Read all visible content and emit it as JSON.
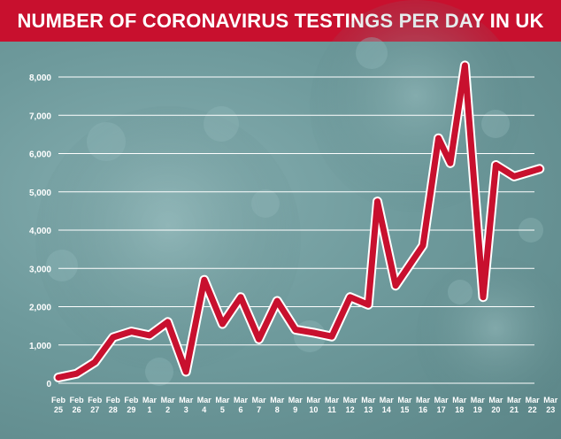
{
  "title": "NUMBER OF CORONAVIRUS TESTINGS PER DAY IN UK",
  "colors": {
    "title_bg": "#c8102e",
    "line": "#c8102e",
    "line_outline": "#ffffff",
    "grid": "#ffffff",
    "text": "#ffffff"
  },
  "chart_data": {
    "type": "line",
    "title": "NUMBER OF CORONAVIRUS TESTINGS PER DAY IN UK",
    "xlabel": "",
    "ylabel": "",
    "ylim": [
      0,
      8000
    ],
    "yticks": [
      0,
      1000,
      2000,
      3000,
      4000,
      5000,
      6000,
      7000,
      8000
    ],
    "ytick_labels": [
      "0",
      "1,000",
      "2,000",
      "3,000",
      "4,000",
      "5,000",
      "6,000",
      "7,000",
      "8,000"
    ],
    "grid": true,
    "legend": "none",
    "categories": [
      {
        "month": "Feb",
        "day": "25"
      },
      {
        "month": "Feb",
        "day": "26"
      },
      {
        "month": "Feb",
        "day": "27"
      },
      {
        "month": "Feb",
        "day": "28"
      },
      {
        "month": "Feb",
        "day": "29"
      },
      {
        "month": "Mar",
        "day": "1"
      },
      {
        "month": "Mar",
        "day": "2"
      },
      {
        "month": "Mar",
        "day": "3"
      },
      {
        "month": "Mar",
        "day": "4"
      },
      {
        "month": "Mar",
        "day": "5"
      },
      {
        "month": "Mar",
        "day": "6"
      },
      {
        "month": "Mar",
        "day": "7"
      },
      {
        "month": "Mar",
        "day": "8"
      },
      {
        "month": "Mar",
        "day": "9"
      },
      {
        "month": "Mar",
        "day": "10"
      },
      {
        "month": "Mar",
        "day": "11"
      },
      {
        "month": "Mar",
        "day": "12"
      },
      {
        "month": "Mar",
        "day": "13"
      },
      {
        "month": "Mar",
        "day": "14"
      },
      {
        "month": "Mar",
        "day": "15"
      },
      {
        "month": "Mar",
        "day": "16"
      },
      {
        "month": "Mar",
        "day": "17"
      },
      {
        "month": "Mar",
        "day": "18"
      },
      {
        "month": "Mar",
        "day": "19"
      },
      {
        "month": "Mar",
        "day": "20"
      },
      {
        "month": "Mar",
        "day": "21"
      },
      {
        "month": "Mar",
        "day": "22"
      },
      {
        "month": "Mar",
        "day": "23"
      }
    ],
    "series": [
      {
        "points": [
          {
            "index": 0,
            "value": 150
          },
          {
            "index": 1,
            "value": 250
          },
          {
            "index": 2,
            "value": 550
          },
          {
            "index": 3,
            "value": 1200
          },
          {
            "index": 4,
            "value": 1350
          },
          {
            "index": 5,
            "value": 1250
          },
          {
            "index": 6,
            "value": 1600
          },
          {
            "index": 7,
            "value": 300
          },
          {
            "index": 8,
            "value": 2700
          },
          {
            "index": 9,
            "value": 1550
          },
          {
            "index": 10,
            "value": 2250
          },
          {
            "index": 11,
            "value": 1150
          },
          {
            "index": 12,
            "value": 2150
          },
          {
            "index": 13,
            "value": 1400
          },
          {
            "index": 14,
            "value": 1320
          },
          {
            "index": 15,
            "value": 1220
          },
          {
            "index": 16,
            "value": 2250
          },
          {
            "index": 17,
            "value": 2050
          },
          {
            "index": 17.5,
            "value": 4750
          },
          {
            "index": 18.5,
            "value": 2550
          },
          {
            "index": 20,
            "value": 3600
          },
          {
            "index": 20.85,
            "value": 6400
          },
          {
            "index": 21.5,
            "value": 5750
          },
          {
            "index": 22.3,
            "value": 8300
          },
          {
            "index": 23.3,
            "value": 2250
          },
          {
            "index": 24,
            "value": 5700
          },
          {
            "index": 25,
            "value": 5400
          },
          {
            "index": 26.4,
            "value": 5600
          }
        ]
      }
    ]
  }
}
